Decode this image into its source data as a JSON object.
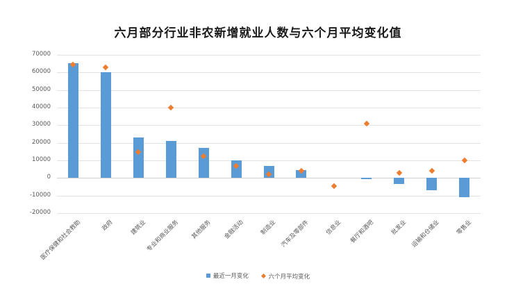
{
  "chart_data": {
    "type": "bar",
    "title": "六月部分行业非农新增就业人数与六个月平均变化值",
    "xlabel": "",
    "ylabel": "",
    "ylim": [
      -20000,
      70000
    ],
    "yticks": [
      70000,
      60000,
      50000,
      40000,
      30000,
      20000,
      10000,
      0,
      -10000,
      -20000
    ],
    "grid": true,
    "legend_position": "bottom",
    "categories": [
      "医疗保健和社会救助",
      "政府",
      "建筑业",
      "专业和商业服务",
      "其他服务",
      "金融活动",
      "制造业",
      "汽车及零部件",
      "信息业",
      "餐厅和酒吧",
      "批发业",
      "运输和仓储业",
      "零售业"
    ],
    "series": [
      {
        "name": "最近一月变化",
        "type": "bar",
        "color": "#5b9bd5",
        "values": [
          65300,
          60000,
          23000,
          20900,
          17000,
          10000,
          6700,
          4300,
          0,
          -800,
          -3600,
          -6800,
          -11100
        ]
      },
      {
        "name": "六个月平均变化",
        "type": "scatter",
        "marker": "diamond",
        "color": "#ed7d31",
        "values": [
          64300,
          63000,
          14600,
          40000,
          12200,
          6800,
          2300,
          4000,
          -4500,
          31000,
          3000,
          4200,
          10000
        ]
      }
    ]
  },
  "legend": {
    "bar_label": "最近一月变化",
    "marker_label": "六个月平均变化"
  }
}
